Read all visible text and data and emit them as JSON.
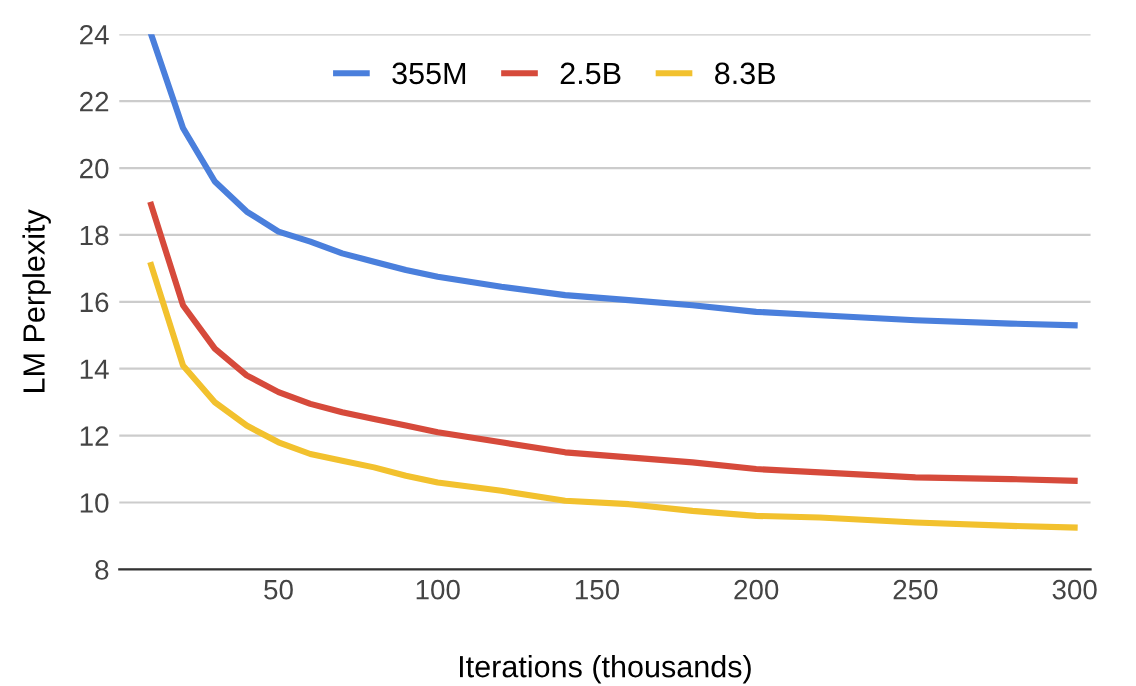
{
  "chart_data": {
    "type": "line",
    "xlabel": "Iterations (thousands)",
    "ylabel": "LM Perplexity",
    "x": [
      10,
      20,
      30,
      40,
      50,
      60,
      70,
      80,
      90,
      100,
      120,
      140,
      160,
      180,
      200,
      220,
      250,
      280,
      300
    ],
    "series": [
      {
        "name": "355M",
        "color": "#4a7fdc",
        "values": [
          24,
          21.2,
          19.6,
          18.7,
          18.1,
          17.8,
          17.45,
          17.2,
          16.95,
          16.75,
          16.45,
          16.2,
          16.05,
          15.9,
          15.7,
          15.6,
          15.45,
          15.35,
          15.3
        ]
      },
      {
        "name": "2.5B",
        "color": "#d64a3b",
        "values": [
          18.9,
          15.9,
          14.6,
          13.8,
          13.3,
          12.95,
          12.7,
          12.5,
          12.3,
          12.1,
          11.8,
          11.5,
          11.35,
          11.2,
          11.0,
          10.9,
          10.75,
          10.7,
          10.65
        ]
      },
      {
        "name": "8.3B",
        "color": "#f2c12e",
        "values": [
          17.1,
          14.1,
          13.0,
          12.3,
          11.8,
          11.45,
          11.25,
          11.05,
          10.8,
          10.6,
          10.35,
          10.05,
          9.95,
          9.75,
          9.6,
          9.55,
          9.4,
          9.3,
          9.25
        ]
      }
    ],
    "xlim": [
      0,
      305
    ],
    "xticks": [
      50,
      100,
      150,
      200,
      250,
      300
    ],
    "ylim": [
      8,
      24
    ],
    "yticks": [
      8,
      10,
      12,
      14,
      16,
      18,
      20,
      22,
      24
    ],
    "grid": "y",
    "legend": "top",
    "marker": "none",
    "line_style": "solid"
  }
}
